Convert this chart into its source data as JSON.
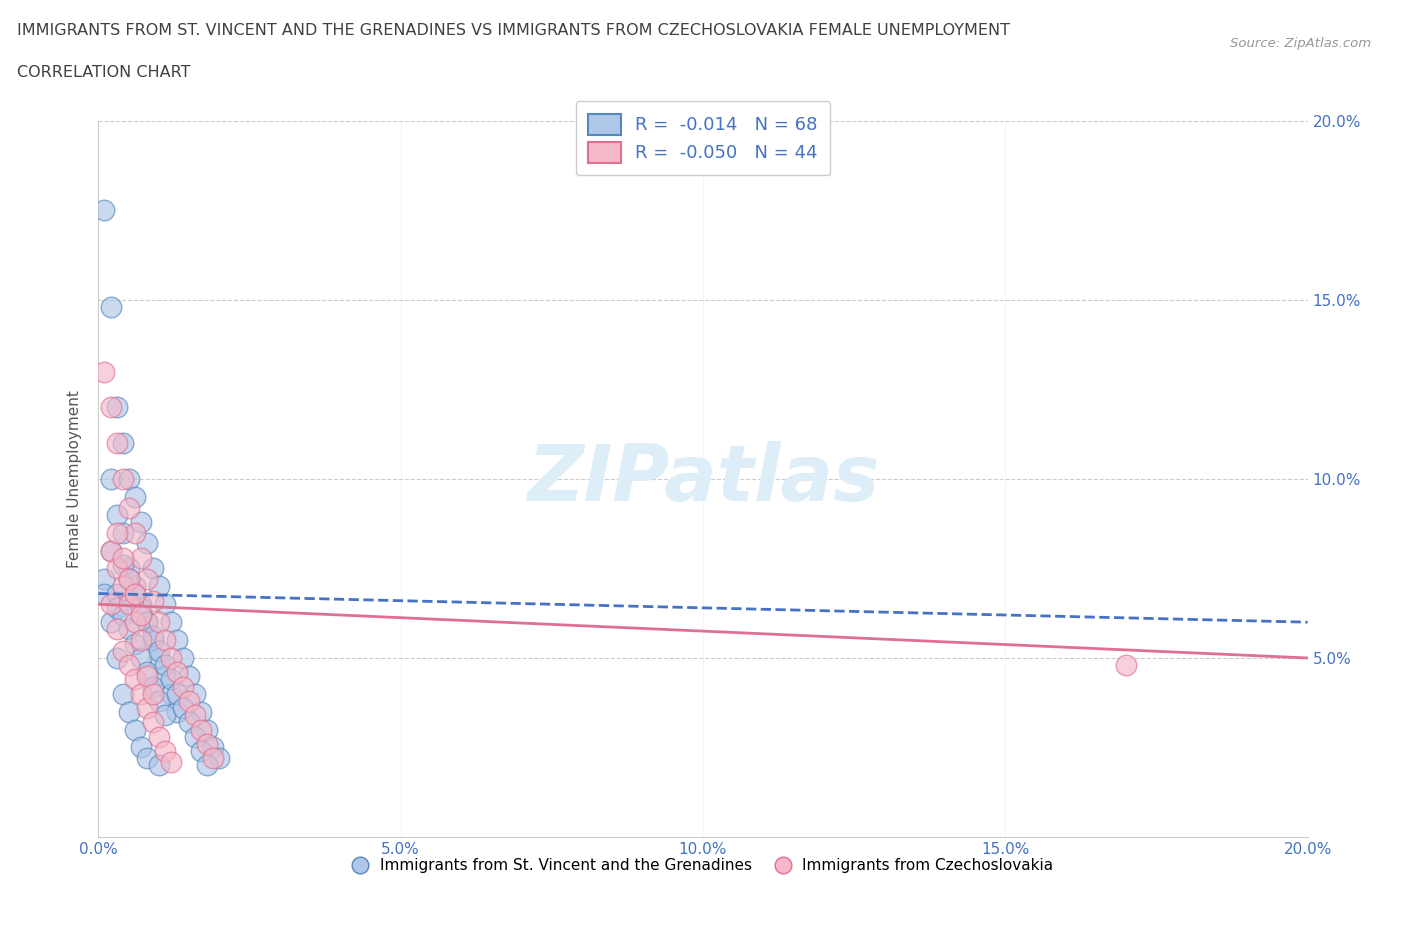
{
  "title_line1": "IMMIGRANTS FROM ST. VINCENT AND THE GRENADINES VS IMMIGRANTS FROM CZECHOSLOVAKIA FEMALE UNEMPLOYMENT",
  "title_line2": "CORRELATION CHART",
  "source_text": "Source: ZipAtlas.com",
  "ylabel": "Female Unemployment",
  "xlim": [
    0.0,
    0.2
  ],
  "ylim": [
    0.0,
    0.2
  ],
  "xticks": [
    0.0,
    0.05,
    0.1,
    0.15,
    0.2
  ],
  "yticks": [
    0.05,
    0.1,
    0.15,
    0.2
  ],
  "xtick_labels": [
    "0.0%",
    "5.0%",
    "10.0%",
    "15.0%",
    "20.0%"
  ],
  "ytick_labels": [
    "5.0%",
    "10.0%",
    "15.0%",
    "20.0%"
  ],
  "series1_label": "Immigrants from St. Vincent and the Grenadines",
  "series2_label": "Immigrants from Czechoslovakia",
  "series1_color": "#aec6e8",
  "series2_color": "#f4b8c8",
  "series1_edge_color": "#5588bb",
  "series2_edge_color": "#e07090",
  "series1_R": -0.014,
  "series1_N": 68,
  "series2_R": -0.05,
  "series2_N": 44,
  "legend_color": "#4472c4",
  "background_color": "#ffffff",
  "grid_color": "#cccccc",
  "title_color": "#404040",
  "watermark_text": "ZIPatlas",
  "watermark_color": "#ddeef8",
  "trend1_color": "#4472c4",
  "trend2_color": "#e07090",
  "series1_x": [
    0.001,
    0.002,
    0.002,
    0.002,
    0.003,
    0.003,
    0.003,
    0.004,
    0.004,
    0.004,
    0.005,
    0.005,
    0.005,
    0.006,
    0.006,
    0.006,
    0.007,
    0.007,
    0.007,
    0.008,
    0.008,
    0.008,
    0.009,
    0.009,
    0.01,
    0.01,
    0.01,
    0.011,
    0.011,
    0.012,
    0.012,
    0.013,
    0.013,
    0.014,
    0.015,
    0.016,
    0.017,
    0.018,
    0.019,
    0.02,
    0.001,
    0.001,
    0.002,
    0.003,
    0.003,
    0.004,
    0.004,
    0.005,
    0.005,
    0.006,
    0.006,
    0.007,
    0.007,
    0.008,
    0.008,
    0.009,
    0.009,
    0.01,
    0.01,
    0.011,
    0.011,
    0.012,
    0.013,
    0.014,
    0.015,
    0.016,
    0.017,
    0.018
  ],
  "series1_y": [
    0.175,
    0.148,
    0.1,
    0.06,
    0.12,
    0.09,
    0.05,
    0.11,
    0.085,
    0.04,
    0.1,
    0.075,
    0.035,
    0.095,
    0.07,
    0.03,
    0.088,
    0.065,
    0.025,
    0.082,
    0.06,
    0.022,
    0.075,
    0.055,
    0.07,
    0.05,
    0.02,
    0.065,
    0.045,
    0.06,
    0.04,
    0.055,
    0.035,
    0.05,
    0.045,
    0.04,
    0.035,
    0.03,
    0.025,
    0.022,
    0.072,
    0.068,
    0.08,
    0.068,
    0.064,
    0.076,
    0.062,
    0.072,
    0.058,
    0.068,
    0.054,
    0.064,
    0.05,
    0.06,
    0.046,
    0.056,
    0.042,
    0.052,
    0.038,
    0.048,
    0.034,
    0.044,
    0.04,
    0.036,
    0.032,
    0.028,
    0.024,
    0.02
  ],
  "series2_x": [
    0.001,
    0.002,
    0.002,
    0.003,
    0.003,
    0.004,
    0.004,
    0.005,
    0.005,
    0.006,
    0.006,
    0.007,
    0.007,
    0.008,
    0.008,
    0.009,
    0.009,
    0.01,
    0.01,
    0.011,
    0.011,
    0.012,
    0.012,
    0.013,
    0.014,
    0.015,
    0.016,
    0.017,
    0.018,
    0.019,
    0.002,
    0.003,
    0.004,
    0.005,
    0.006,
    0.007,
    0.008,
    0.003,
    0.004,
    0.005,
    0.006,
    0.007,
    0.17,
    0.009
  ],
  "series2_y": [
    0.13,
    0.12,
    0.065,
    0.11,
    0.058,
    0.1,
    0.052,
    0.092,
    0.048,
    0.085,
    0.044,
    0.078,
    0.04,
    0.072,
    0.036,
    0.066,
    0.032,
    0.06,
    0.028,
    0.055,
    0.024,
    0.05,
    0.021,
    0.046,
    0.042,
    0.038,
    0.034,
    0.03,
    0.026,
    0.022,
    0.08,
    0.075,
    0.07,
    0.065,
    0.06,
    0.055,
    0.045,
    0.085,
    0.078,
    0.072,
    0.068,
    0.062,
    0.048,
    0.04
  ],
  "trend1_x_start": 0.0,
  "trend1_x_end": 0.2,
  "trend1_y_start": 0.068,
  "trend1_y_end": 0.06,
  "trend2_x_start": 0.0,
  "trend2_x_end": 0.2,
  "trend2_y_start": 0.065,
  "trend2_y_end": 0.05
}
